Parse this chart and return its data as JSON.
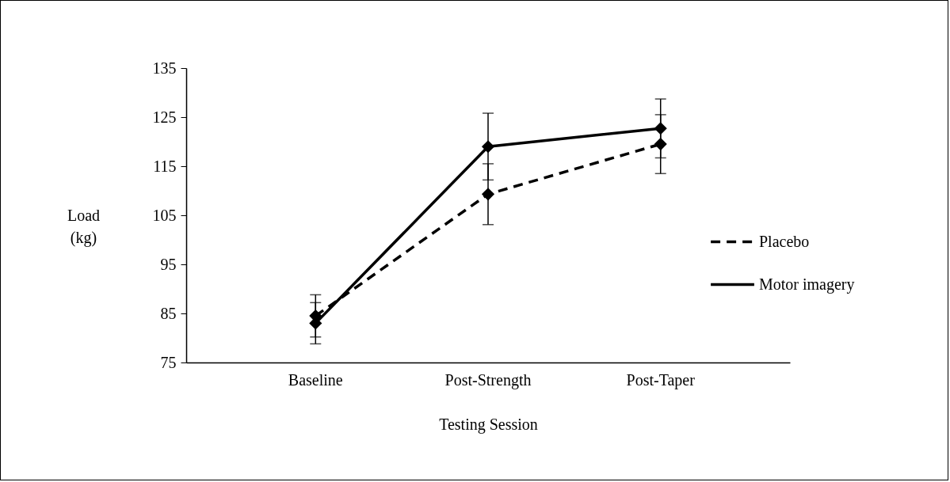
{
  "chart_data": {
    "type": "line",
    "xlabel": "Testing Session",
    "ylabel": "Load (kg)",
    "categories": [
      "Baseline",
      "Post-Strength",
      "Post-Taper"
    ],
    "series": [
      {
        "name": "Placebo",
        "color": "#000000",
        "line_style": "dashed",
        "values": [
          84.5,
          109.3,
          119.5
        ],
        "errors": [
          4.3,
          6.2,
          6
        ]
      },
      {
        "name": "Motor imagery",
        "color": "#000000",
        "line_style": "solid",
        "values": [
          83,
          119,
          122.7
        ],
        "errors": [
          4.2,
          6.8,
          6
        ]
      }
    ],
    "ylim": [
      75,
      135
    ],
    "yticks": [
      75,
      85,
      95,
      105,
      115,
      125,
      135
    ],
    "grid": false,
    "marker": "diamond",
    "legend": "right"
  }
}
